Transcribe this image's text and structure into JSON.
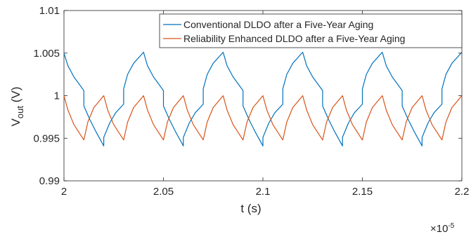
{
  "chart_data": {
    "type": "line",
    "xlabel": "t (s)",
    "ylabel_main": "V",
    "ylabel_sub": "out",
    "ylabel_unit": " (V)",
    "x_multiplier": "×10",
    "x_multiplier_exp": "-5",
    "xlim": [
      2.0,
      2.2
    ],
    "ylim": [
      0.99,
      1.01
    ],
    "x_ticks": [
      "2",
      "2.05",
      "2.1",
      "2.15",
      "2.2"
    ],
    "x_tick_values": [
      2.0,
      2.05,
      2.1,
      2.15,
      2.2
    ],
    "y_ticks": [
      "0.99",
      "0.995",
      "1",
      "1.005",
      "1.01"
    ],
    "y_tick_values": [
      0.99,
      0.995,
      1.0,
      1.005,
      1.01
    ],
    "grid": false,
    "legend_position": "top-right",
    "colors": {
      "blue": "#0072BD",
      "orange": "#D95319",
      "axis": "#262626"
    },
    "series": [
      {
        "name": "Conventional DLDO after a Five-Year Aging",
        "color": "#0072BD",
        "period": 0.04,
        "cycle_x": [
          0.0,
          0.002,
          0.005,
          0.01,
          0.01,
          0.013,
          0.016,
          0.02,
          0.02,
          0.023,
          0.026,
          0.03,
          0.03,
          0.032,
          0.035,
          0.04
        ],
        "cycle_y": [
          1.005,
          1.0035,
          1.0022,
          1.0006,
          0.9988,
          0.9972,
          0.9958,
          0.9941,
          0.9951,
          0.9968,
          0.998,
          0.999,
          1.0008,
          1.0025,
          1.0038,
          1.0051
        ]
      },
      {
        "name": "Reliability Enhanced DLDO after a Five-Year Aging",
        "color": "#D95319",
        "period": 0.02,
        "cycle_x": [
          0.0,
          0.002,
          0.005,
          0.01,
          0.012,
          0.015,
          0.02
        ],
        "cycle_y": [
          1.0,
          0.9983,
          0.9966,
          0.9948,
          0.9969,
          0.9986,
          1.0
        ]
      }
    ]
  }
}
